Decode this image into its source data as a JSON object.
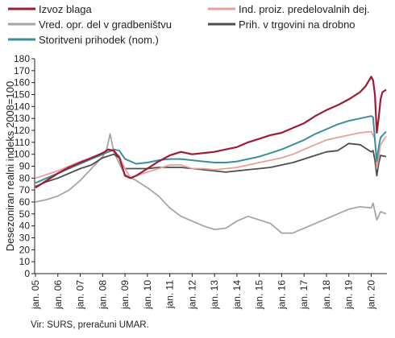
{
  "chart_data": {
    "type": "line",
    "ylabel": "Desezoniran realni indeks 2008=100",
    "ylim": [
      0,
      180
    ],
    "yticks": [
      0,
      10,
      20,
      30,
      40,
      50,
      60,
      70,
      80,
      90,
      100,
      110,
      120,
      130,
      140,
      150,
      160,
      170,
      180
    ],
    "xticks": [
      "jan. 05",
      "jan. 06",
      "jan. 07",
      "jan. 08",
      "jan. 09",
      "jan. 10",
      "jan. 11",
      "jan. 12",
      "jan. 13",
      "jan. 14",
      "jan. 15",
      "jan. 16",
      "jan. 17",
      "jan. 18",
      "jan. 19",
      "jan. 20"
    ],
    "x_start": "2005-01",
    "x_end": "2020-09",
    "grid": false,
    "legend": "top, two columns",
    "series": [
      {
        "name": "Izvoz blaga",
        "color": "#9d1c34",
        "width": 2.2,
        "points": [
          [
            "2005-01",
            72
          ],
          [
            "2005-07",
            78
          ],
          [
            "2006-01",
            84
          ],
          [
            "2006-07",
            89
          ],
          [
            "2007-01",
            93
          ],
          [
            "2007-07",
            97
          ],
          [
            "2008-01",
            101
          ],
          [
            "2008-04",
            104
          ],
          [
            "2008-07",
            103
          ],
          [
            "2008-10",
            97
          ],
          [
            "2009-01",
            82
          ],
          [
            "2009-04",
            80
          ],
          [
            "2009-07",
            82
          ],
          [
            "2010-01",
            88
          ],
          [
            "2010-07",
            94
          ],
          [
            "2011-01",
            99
          ],
          [
            "2011-07",
            102
          ],
          [
            "2012-01",
            100
          ],
          [
            "2012-07",
            101
          ],
          [
            "2013-01",
            102
          ],
          [
            "2013-07",
            104
          ],
          [
            "2014-01",
            106
          ],
          [
            "2014-07",
            110
          ],
          [
            "2015-01",
            113
          ],
          [
            "2015-07",
            116
          ],
          [
            "2016-01",
            118
          ],
          [
            "2016-07",
            122
          ],
          [
            "2017-01",
            126
          ],
          [
            "2017-07",
            132
          ],
          [
            "2018-01",
            137
          ],
          [
            "2018-07",
            141
          ],
          [
            "2019-01",
            146
          ],
          [
            "2019-07",
            152
          ],
          [
            "2019-10",
            157
          ],
          [
            "2020-01",
            165
          ],
          [
            "2020-02",
            162
          ],
          [
            "2020-03",
            150
          ],
          [
            "2020-04",
            118
          ],
          [
            "2020-05",
            130
          ],
          [
            "2020-06",
            146
          ],
          [
            "2020-07",
            152
          ],
          [
            "2020-09",
            154
          ]
        ]
      },
      {
        "name": "Ind. proiz. predelovalnih dej.",
        "color": "#e8a09b",
        "width": 1.8,
        "points": [
          [
            "2005-01",
            80
          ],
          [
            "2005-07",
            83
          ],
          [
            "2006-01",
            86
          ],
          [
            "2006-07",
            90
          ],
          [
            "2007-01",
            94
          ],
          [
            "2007-07",
            97
          ],
          [
            "2008-01",
            101
          ],
          [
            "2008-07",
            103
          ],
          [
            "2008-10",
            98
          ],
          [
            "2009-01",
            88
          ],
          [
            "2009-04",
            80
          ],
          [
            "2009-07",
            82
          ],
          [
            "2010-01",
            85
          ],
          [
            "2010-07",
            88
          ],
          [
            "2011-01",
            91
          ],
          [
            "2011-07",
            91
          ],
          [
            "2012-01",
            88
          ],
          [
            "2012-07",
            88
          ],
          [
            "2013-01",
            87
          ],
          [
            "2013-07",
            88
          ],
          [
            "2014-01",
            89
          ],
          [
            "2014-07",
            91
          ],
          [
            "2015-01",
            93
          ],
          [
            "2015-07",
            95
          ],
          [
            "2016-01",
            97
          ],
          [
            "2016-07",
            100
          ],
          [
            "2017-01",
            104
          ],
          [
            "2017-07",
            108
          ],
          [
            "2018-01",
            112
          ],
          [
            "2018-07",
            114
          ],
          [
            "2019-01",
            116
          ],
          [
            "2019-07",
            118
          ],
          [
            "2020-01",
            119
          ],
          [
            "2020-03",
            113
          ],
          [
            "2020-04",
            88
          ],
          [
            "2020-05",
            97
          ],
          [
            "2020-06",
            108
          ],
          [
            "2020-09",
            115
          ]
        ]
      },
      {
        "name": "Vred. opr. del v gradbeništvu",
        "color": "#a6a6a6",
        "width": 1.8,
        "points": [
          [
            "2005-01",
            60
          ],
          [
            "2005-07",
            62
          ],
          [
            "2006-01",
            65
          ],
          [
            "2006-07",
            70
          ],
          [
            "2007-01",
            78
          ],
          [
            "2007-07",
            88
          ],
          [
            "2008-01",
            98
          ],
          [
            "2008-03",
            103
          ],
          [
            "2008-05",
            117
          ],
          [
            "2008-07",
            102
          ],
          [
            "2008-10",
            92
          ],
          [
            "2009-01",
            83
          ],
          [
            "2009-07",
            78
          ],
          [
            "2010-01",
            72
          ],
          [
            "2010-07",
            65
          ],
          [
            "2011-01",
            55
          ],
          [
            "2011-07",
            48
          ],
          [
            "2012-01",
            44
          ],
          [
            "2012-07",
            40
          ],
          [
            "2013-01",
            37
          ],
          [
            "2013-07",
            38
          ],
          [
            "2014-01",
            44
          ],
          [
            "2014-07",
            48
          ],
          [
            "2015-01",
            45
          ],
          [
            "2015-07",
            42
          ],
          [
            "2016-01",
            34
          ],
          [
            "2016-07",
            34
          ],
          [
            "2017-01",
            38
          ],
          [
            "2017-07",
            42
          ],
          [
            "2018-01",
            46
          ],
          [
            "2018-07",
            50
          ],
          [
            "2019-01",
            54
          ],
          [
            "2019-07",
            56
          ],
          [
            "2020-01",
            55
          ],
          [
            "2020-02",
            59
          ],
          [
            "2020-04",
            45
          ],
          [
            "2020-06",
            52
          ],
          [
            "2020-09",
            50
          ]
        ]
      },
      {
        "name": "Prih. v trgovini na drobno",
        "color": "#4d4d4d",
        "width": 1.8,
        "points": [
          [
            "2005-01",
            73
          ],
          [
            "2005-07",
            77
          ],
          [
            "2006-01",
            80
          ],
          [
            "2006-07",
            84
          ],
          [
            "2007-01",
            88
          ],
          [
            "2007-07",
            91
          ],
          [
            "2008-01",
            97
          ],
          [
            "2008-07",
            100
          ],
          [
            "2008-10",
            97
          ],
          [
            "2009-01",
            88
          ],
          [
            "2009-07",
            88
          ],
          [
            "2010-01",
            88
          ],
          [
            "2010-07",
            89
          ],
          [
            "2011-01",
            89
          ],
          [
            "2011-07",
            89
          ],
          [
            "2012-01",
            88
          ],
          [
            "2012-07",
            87
          ],
          [
            "2013-01",
            86
          ],
          [
            "2013-07",
            85
          ],
          [
            "2014-01",
            86
          ],
          [
            "2014-07",
            87
          ],
          [
            "2015-01",
            88
          ],
          [
            "2015-07",
            89
          ],
          [
            "2016-01",
            91
          ],
          [
            "2016-07",
            93
          ],
          [
            "2017-01",
            96
          ],
          [
            "2017-07",
            99
          ],
          [
            "2018-01",
            102
          ],
          [
            "2018-07",
            103
          ],
          [
            "2019-01",
            109
          ],
          [
            "2019-07",
            108
          ],
          [
            "2020-01",
            102
          ],
          [
            "2020-02",
            103
          ],
          [
            "2020-03",
            95
          ],
          [
            "2020-04",
            82
          ],
          [
            "2020-05",
            92
          ],
          [
            "2020-06",
            99
          ],
          [
            "2020-09",
            98
          ]
        ]
      },
      {
        "name": "Storitveni prihodek (nom.)",
        "color": "#3a8f9a",
        "width": 2.0,
        "points": [
          [
            "2005-01",
            76
          ],
          [
            "2005-07",
            80
          ],
          [
            "2006-01",
            84
          ],
          [
            "2006-07",
            88
          ],
          [
            "2007-01",
            92
          ],
          [
            "2007-07",
            96
          ],
          [
            "2008-01",
            100
          ],
          [
            "2008-07",
            104
          ],
          [
            "2008-10",
            103
          ],
          [
            "2009-01",
            96
          ],
          [
            "2009-07",
            92
          ],
          [
            "2010-01",
            93
          ],
          [
            "2010-07",
            95
          ],
          [
            "2011-01",
            96
          ],
          [
            "2011-07",
            96
          ],
          [
            "2012-01",
            95
          ],
          [
            "2012-07",
            94
          ],
          [
            "2013-01",
            93
          ],
          [
            "2013-07",
            93
          ],
          [
            "2014-01",
            94
          ],
          [
            "2014-07",
            96
          ],
          [
            "2015-01",
            98
          ],
          [
            "2015-07",
            101
          ],
          [
            "2016-01",
            104
          ],
          [
            "2016-07",
            108
          ],
          [
            "2017-01",
            112
          ],
          [
            "2017-07",
            117
          ],
          [
            "2018-01",
            121
          ],
          [
            "2018-07",
            125
          ],
          [
            "2019-01",
            128
          ],
          [
            "2019-07",
            130
          ],
          [
            "2020-01",
            132
          ],
          [
            "2020-02",
            131
          ],
          [
            "2020-03",
            112
          ],
          [
            "2020-04",
            94
          ],
          [
            "2020-05",
            106
          ],
          [
            "2020-06",
            114
          ],
          [
            "2020-09",
            119
          ]
        ]
      }
    ]
  },
  "source": "Vir: SURS, preračuni UMAR."
}
